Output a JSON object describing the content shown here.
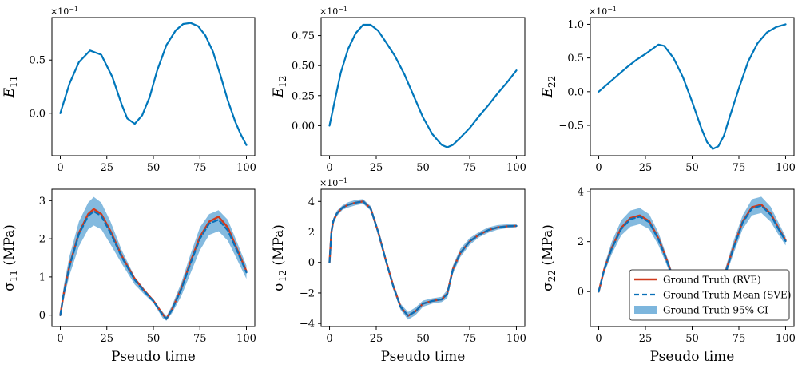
{
  "figure": {
    "x_axis_label": "Pseudo time",
    "legend": {
      "placement": "lower-right of bottom-right panel",
      "entries": [
        {
          "label": "Ground Truth (RVE)",
          "style": "solid-line",
          "color": "#d03a1c"
        },
        {
          "label": "Ground Truth Mean (SVE)",
          "style": "dashed-line",
          "color": "#0a6fb8"
        },
        {
          "label": "Ground Truth 95% CI",
          "style": "band",
          "color": "#7db6dd"
        }
      ]
    },
    "colors": {
      "strain": "#0077bb",
      "rve": "#d03a1c",
      "sve_mean": "#0a6fb8",
      "ci_band": "#7db6dd"
    }
  },
  "chart_data": [
    {
      "type": "line",
      "ylabel_main": "E",
      "ylabel_sub": "11",
      "ylabel_unit": "",
      "exponent_prefix": "×10",
      "exponent": "−1",
      "xlim": [
        0,
        100
      ],
      "ylim": [
        -0.4,
        0.9
      ],
      "xticks": [
        0,
        25,
        50,
        75,
        100
      ],
      "yticks": [
        0.0,
        0.5
      ],
      "ytick_labels": [
        "0.0",
        "0.5"
      ],
      "series": [
        {
          "kind": "strain",
          "x": [
            0,
            5,
            10,
            16,
            22,
            28,
            33,
            36,
            40,
            44,
            48,
            52,
            57,
            62,
            66,
            70,
            74,
            78,
            82,
            86,
            90,
            94,
            97,
            100
          ],
          "y": [
            0.0,
            0.28,
            0.48,
            0.59,
            0.55,
            0.34,
            0.08,
            -0.05,
            -0.1,
            -0.02,
            0.15,
            0.4,
            0.64,
            0.78,
            0.84,
            0.85,
            0.82,
            0.73,
            0.58,
            0.36,
            0.12,
            -0.08,
            -0.2,
            -0.3
          ]
        }
      ]
    },
    {
      "type": "line",
      "ylabel_main": "E",
      "ylabel_sub": "12",
      "ylabel_unit": "",
      "exponent_prefix": "×10",
      "exponent": "−1",
      "xlim": [
        0,
        100
      ],
      "ylim": [
        -0.25,
        0.9
      ],
      "xticks": [
        0,
        25,
        50,
        75,
        100
      ],
      "yticks": [
        0.0,
        0.25,
        0.5,
        0.75
      ],
      "ytick_labels": [
        "0.00",
        "0.25",
        "0.50",
        "0.75"
      ],
      "series": [
        {
          "kind": "strain",
          "x": [
            0,
            3,
            6,
            10,
            14,
            18,
            22,
            26,
            30,
            35,
            40,
            45,
            50,
            55,
            60,
            63,
            66,
            70,
            75,
            80,
            85,
            90,
            95,
            100
          ],
          "y": [
            0.0,
            0.22,
            0.44,
            0.64,
            0.77,
            0.84,
            0.84,
            0.79,
            0.7,
            0.58,
            0.43,
            0.25,
            0.07,
            -0.07,
            -0.16,
            -0.18,
            -0.16,
            -0.1,
            -0.02,
            0.08,
            0.17,
            0.27,
            0.36,
            0.46
          ]
        }
      ]
    },
    {
      "type": "line",
      "ylabel_main": "E",
      "ylabel_sub": "22",
      "ylabel_unit": "",
      "exponent_prefix": "×10",
      "exponent": "−1",
      "xlim": [
        0,
        100
      ],
      "ylim": [
        -0.95,
        1.1
      ],
      "xticks": [
        0,
        25,
        50,
        75,
        100
      ],
      "yticks": [
        -0.5,
        0.0,
        0.5,
        1.0
      ],
      "ytick_labels": [
        "−0.5",
        "0.0",
        "0.5",
        "1.0"
      ],
      "series": [
        {
          "kind": "strain",
          "x": [
            0,
            5,
            10,
            15,
            20,
            25,
            30,
            32,
            35,
            40,
            45,
            50,
            55,
            58,
            61,
            64,
            67,
            70,
            75,
            80,
            85,
            90,
            95,
            100
          ],
          "y": [
            0.0,
            0.12,
            0.24,
            0.36,
            0.47,
            0.56,
            0.66,
            0.7,
            0.68,
            0.5,
            0.22,
            -0.15,
            -0.55,
            -0.75,
            -0.85,
            -0.81,
            -0.65,
            -0.38,
            0.05,
            0.45,
            0.72,
            0.88,
            0.96,
            1.0
          ]
        }
      ]
    },
    {
      "type": "line",
      "ylabel_main": "σ",
      "ylabel_sub": "11",
      "ylabel_unit": " (MPa)",
      "exponent_prefix": "",
      "exponent": "",
      "xlim": [
        0,
        100
      ],
      "ylim": [
        -0.3,
        3.3
      ],
      "xticks": [
        0,
        25,
        50,
        75,
        100
      ],
      "yticks": [
        0,
        1,
        2,
        3
      ],
      "ytick_labels": [
        "0",
        "1",
        "2",
        "3"
      ],
      "series": [
        {
          "kind": "ci_band",
          "x": [
            0,
            2,
            5,
            10,
            15,
            18,
            22,
            27,
            33,
            40,
            45,
            50,
            55,
            57,
            60,
            65,
            70,
            75,
            80,
            85,
            90,
            95,
            100
          ],
          "upper": [
            0.0,
            0.8,
            1.55,
            2.45,
            2.95,
            3.1,
            2.95,
            2.45,
            1.7,
            1.0,
            0.7,
            0.4,
            0.08,
            -0.03,
            0.25,
            0.85,
            1.6,
            2.3,
            2.65,
            2.75,
            2.5,
            1.9,
            1.3
          ],
          "lower": [
            0.0,
            0.45,
            1.05,
            1.8,
            2.25,
            2.35,
            2.25,
            1.85,
            1.35,
            0.8,
            0.55,
            0.32,
            -0.08,
            -0.15,
            0.05,
            0.5,
            1.1,
            1.7,
            2.1,
            2.2,
            1.95,
            1.45,
            0.95
          ]
        },
        {
          "kind": "rve",
          "x": [
            0,
            2,
            5,
            10,
            15,
            18,
            22,
            27,
            33,
            40,
            45,
            50,
            55,
            57,
            60,
            65,
            70,
            75,
            80,
            85,
            90,
            95,
            100
          ],
          "y": [
            0.0,
            0.6,
            1.3,
            2.15,
            2.65,
            2.78,
            2.65,
            2.2,
            1.55,
            0.95,
            0.65,
            0.38,
            0.02,
            -0.1,
            0.15,
            0.7,
            1.4,
            2.05,
            2.45,
            2.58,
            2.3,
            1.72,
            1.15
          ]
        },
        {
          "kind": "sve_mean",
          "x": [
            0,
            2,
            5,
            10,
            15,
            18,
            22,
            27,
            33,
            40,
            45,
            50,
            55,
            57,
            60,
            65,
            70,
            75,
            80,
            85,
            90,
            95,
            100
          ],
          "y": [
            0.0,
            0.6,
            1.28,
            2.12,
            2.6,
            2.72,
            2.6,
            2.15,
            1.52,
            0.92,
            0.63,
            0.37,
            0.0,
            -0.1,
            0.14,
            0.68,
            1.36,
            2.0,
            2.4,
            2.5,
            2.22,
            1.68,
            1.12
          ]
        }
      ]
    },
    {
      "type": "line",
      "ylabel_main": "σ",
      "ylabel_sub": "12",
      "ylabel_unit": " (MPa)",
      "exponent_prefix": "×10",
      "exponent": "−1",
      "xlim": [
        0,
        100
      ],
      "ylim": [
        -4.2,
        4.8
      ],
      "xticks": [
        0,
        25,
        50,
        75,
        100
      ],
      "yticks": [
        -4,
        -2,
        0,
        2,
        4
      ],
      "ytick_labels": [
        "−4",
        "−2",
        "0",
        "2",
        "4"
      ],
      "series": [
        {
          "kind": "ci_band",
          "x": [
            0,
            1,
            2,
            4,
            7,
            10,
            14,
            18,
            22,
            26,
            30,
            34,
            38,
            42,
            46,
            50,
            55,
            60,
            63,
            66,
            70,
            75,
            80,
            85,
            90,
            95,
            100
          ],
          "upper": [
            0.0,
            2.2,
            2.9,
            3.4,
            3.75,
            3.95,
            4.1,
            4.15,
            3.7,
            2.2,
            0.4,
            -1.3,
            -2.7,
            -3.25,
            -2.95,
            -2.5,
            -2.35,
            -2.25,
            -1.8,
            -0.2,
            0.9,
            1.6,
            2.0,
            2.3,
            2.45,
            2.5,
            2.55
          ],
          "lower": [
            0.0,
            1.8,
            2.5,
            3.05,
            3.45,
            3.6,
            3.75,
            3.85,
            3.4,
            1.8,
            0.0,
            -1.75,
            -3.1,
            -3.75,
            -3.45,
            -2.9,
            -2.7,
            -2.6,
            -2.35,
            -0.75,
            0.35,
            1.15,
            1.65,
            1.95,
            2.15,
            2.25,
            2.3
          ]
        },
        {
          "kind": "rve",
          "x": [
            0,
            1,
            2,
            4,
            7,
            10,
            14,
            18,
            22,
            26,
            30,
            34,
            38,
            42,
            46,
            50,
            55,
            60,
            63,
            66,
            70,
            75,
            80,
            85,
            90,
            95,
            100
          ],
          "y": [
            0.0,
            2.0,
            2.7,
            3.22,
            3.6,
            3.78,
            3.92,
            4.0,
            3.55,
            2.0,
            0.2,
            -1.5,
            -2.9,
            -3.5,
            -3.2,
            -2.7,
            -2.52,
            -2.42,
            -2.05,
            -0.45,
            0.62,
            1.38,
            1.82,
            2.12,
            2.3,
            2.37,
            2.4
          ]
        },
        {
          "kind": "sve_mean",
          "x": [
            0,
            1,
            2,
            4,
            7,
            10,
            14,
            18,
            22,
            26,
            30,
            34,
            38,
            42,
            46,
            50,
            55,
            60,
            63,
            66,
            70,
            75,
            80,
            85,
            90,
            95,
            100
          ],
          "y": [
            0.0,
            2.0,
            2.7,
            3.22,
            3.6,
            3.78,
            3.92,
            4.0,
            3.55,
            2.0,
            0.2,
            -1.52,
            -2.9,
            -3.5,
            -3.2,
            -2.7,
            -2.52,
            -2.42,
            -2.08,
            -0.47,
            0.62,
            1.38,
            1.82,
            2.12,
            2.3,
            2.37,
            2.4
          ]
        }
      ]
    },
    {
      "type": "line",
      "ylabel_main": "σ",
      "ylabel_sub": "22",
      "ylabel_unit": " (MPa)",
      "exponent_prefix": "",
      "exponent": "",
      "xlim": [
        0,
        100
      ],
      "ylim": [
        -1.4,
        4.1
      ],
      "xticks": [
        0,
        25,
        50,
        75,
        100
      ],
      "yticks": [
        0,
        2,
        4
      ],
      "ytick_labels": [
        "0",
        "2",
        "4"
      ],
      "series": [
        {
          "kind": "ci_band",
          "x": [
            0,
            3,
            7,
            12,
            17,
            22,
            27,
            32,
            37,
            42,
            47,
            52,
            57,
            62,
            67,
            72,
            77,
            82,
            87,
            92,
            96,
            100
          ],
          "upper": [
            0.0,
            1.05,
            2.0,
            2.85,
            3.25,
            3.35,
            3.1,
            2.35,
            1.3,
            0.2,
            -0.55,
            -0.75,
            -0.6,
            -0.15,
            0.75,
            2.0,
            3.05,
            3.7,
            3.8,
            3.4,
            2.8,
            2.2
          ],
          "lower": [
            0.0,
            0.75,
            1.5,
            2.25,
            2.6,
            2.7,
            2.5,
            1.85,
            0.95,
            -0.1,
            -0.9,
            -1.1,
            -0.95,
            -0.45,
            0.4,
            1.5,
            2.5,
            3.05,
            3.15,
            2.8,
            2.3,
            1.85
          ]
        },
        {
          "kind": "rve",
          "x": [
            0,
            3,
            7,
            12,
            17,
            22,
            27,
            32,
            37,
            42,
            47,
            52,
            57,
            62,
            67,
            72,
            77,
            82,
            87,
            92,
            96,
            100
          ],
          "y": [
            0.0,
            0.9,
            1.75,
            2.55,
            2.95,
            3.05,
            2.82,
            2.12,
            1.15,
            0.05,
            -0.72,
            -0.92,
            -0.78,
            -0.3,
            0.58,
            1.75,
            2.8,
            3.38,
            3.48,
            3.12,
            2.57,
            2.05
          ]
        },
        {
          "kind": "sve_mean",
          "x": [
            0,
            3,
            7,
            12,
            17,
            22,
            27,
            32,
            37,
            42,
            47,
            52,
            57,
            62,
            67,
            72,
            77,
            82,
            87,
            92,
            96,
            100
          ],
          "y": [
            0.0,
            0.88,
            1.72,
            2.5,
            2.9,
            3.0,
            2.78,
            2.08,
            1.12,
            0.03,
            -0.74,
            -0.94,
            -0.8,
            -0.32,
            0.55,
            1.72,
            2.76,
            3.34,
            3.44,
            3.08,
            2.53,
            2.02
          ]
        }
      ]
    }
  ]
}
